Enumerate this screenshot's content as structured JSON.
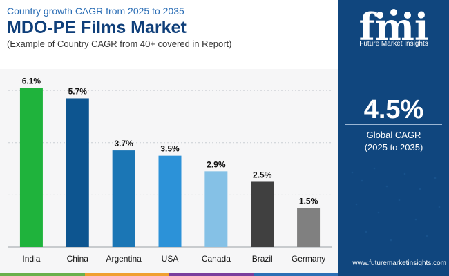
{
  "header": {
    "subtitle": "Country growth CAGR from 2025 to 2035",
    "title": "MDO-PE Films Market",
    "note": "(Example of Country CAGR from 40+ covered in Report)"
  },
  "sidebar": {
    "logo_text": "fmi",
    "brand": "Future Market Insights",
    "cagr_value": "4.5%",
    "cagr_label": "Global CAGR",
    "cagr_period": "(2025 to 2035)",
    "website": "www.futuremarketinsights.com",
    "background_color": "#10467e"
  },
  "chart_data": {
    "type": "bar",
    "categories": [
      "India",
      "China",
      "Argentina",
      "USA",
      "Canada",
      "Brazil",
      "Germany"
    ],
    "values": [
      6.1,
      5.7,
      3.7,
      3.5,
      2.9,
      2.5,
      1.5
    ],
    "value_labels": [
      "6.1%",
      "5.7%",
      "3.7%",
      "3.5%",
      "2.9%",
      "2.5%",
      "1.5%"
    ],
    "colors": [
      "#1fb33c",
      "#0d5590",
      "#1b76b5",
      "#2c92d8",
      "#85c1e6",
      "#404040",
      "#808080"
    ],
    "ylim": [
      0,
      6.4
    ],
    "gridlines": [
      2,
      4,
      6
    ],
    "grid": true
  },
  "bottom_strip_colors": [
    "#6ab04c",
    "#f0a030",
    "#7a3e9d",
    "#2c6fb5"
  ]
}
